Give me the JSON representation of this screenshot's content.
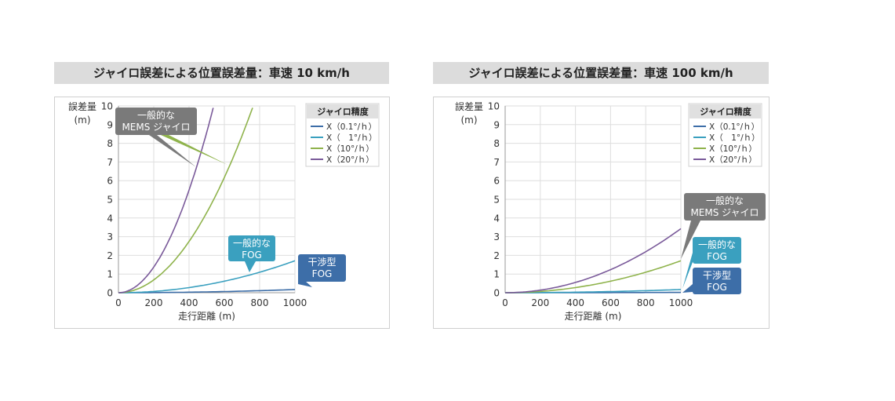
{
  "chart_data": [
    {
      "type": "line",
      "title": "ジャイロ誤差による位置誤差量：車速 10 km/h",
      "xlabel": "走行距離 (m)",
      "ylabel": [
        "誤差量",
        "(m)"
      ],
      "xlim": [
        0,
        1000
      ],
      "ylim": [
        0,
        10
      ],
      "xticks": [
        "0",
        "200",
        "400",
        "600",
        "800",
        "1000"
      ],
      "yticks": [
        "0",
        "1",
        "2",
        "3",
        "4",
        "5",
        "6",
        "7",
        "8",
        "9",
        "10"
      ],
      "grid": true,
      "legend": {
        "title": "ジャイロ精度",
        "position": "top-right",
        "entries": [
          "X（0.1°/ｈ）",
          "X（　1°/ｈ）",
          "X（10°/ｈ）",
          "X（20°/ｈ）"
        ]
      },
      "series": [
        {
          "name": "X（0.1°/ｈ）",
          "color": "#3d6ea8",
          "x": [
            0,
            200,
            400,
            600,
            800,
            1000
          ],
          "y": [
            0,
            0.007,
            0.027,
            0.062,
            0.11,
            0.171
          ]
        },
        {
          "name": "X（　1°/ｈ）",
          "color": "#3aa0bf",
          "x": [
            0,
            200,
            400,
            600,
            800,
            1000
          ],
          "y": [
            0,
            0.068,
            0.274,
            0.617,
            1.097,
            1.714
          ]
        },
        {
          "name": "X（10°/ｈ）",
          "color": "#8fb34c",
          "x": [
            0,
            200,
            400,
            600,
            760
          ],
          "y": [
            0,
            0.686,
            2.742,
            6.171,
            9.9
          ]
        },
        {
          "name": "X（20°/ｈ）",
          "color": "#7a5a9a",
          "x": [
            0,
            100,
            200,
            300,
            400,
            500,
            537
          ],
          "y": [
            0,
            0.343,
            1.371,
            3.086,
            5.485,
            8.571,
            9.9
          ]
        }
      ],
      "annotations": [
        {
          "label": [
            "一般的な",
            "MEMS ジャイロ"
          ],
          "color": "#7a7a7a"
        },
        {
          "label": [
            "一般的な",
            "FOG"
          ],
          "color": "#3aa0bf"
        },
        {
          "label": [
            "干渉型",
            "FOG"
          ],
          "color": "#3d6ea8"
        }
      ]
    },
    {
      "type": "line",
      "title": "ジャイロ誤差による位置誤差量：車速 100 km/h",
      "xlabel": "走行距離 (m)",
      "ylabel": [
        "誤差量",
        "(m)"
      ],
      "xlim": [
        0,
        1000
      ],
      "ylim": [
        0,
        10
      ],
      "xticks": [
        "0",
        "200",
        "400",
        "600",
        "800",
        "1000"
      ],
      "yticks": [
        "0",
        "1",
        "2",
        "3",
        "4",
        "5",
        "6",
        "7",
        "8",
        "9",
        "10"
      ],
      "grid": true,
      "legend": {
        "title": "ジャイロ精度",
        "position": "top-right",
        "entries": [
          "X（0.1°/ｈ）",
          "X（　1°/ｈ）",
          "X（10°/ｈ）",
          "X（20°/ｈ）"
        ]
      },
      "series": [
        {
          "name": "X（0.1°/ｈ）",
          "color": "#3d6ea8",
          "x": [
            0,
            200,
            400,
            600,
            800,
            1000
          ],
          "y": [
            0,
            0.001,
            0.003,
            0.006,
            0.011,
            0.017
          ]
        },
        {
          "name": "X（　1°/ｈ）",
          "color": "#3aa0bf",
          "x": [
            0,
            200,
            400,
            600,
            800,
            1000
          ],
          "y": [
            0,
            0.007,
            0.027,
            0.062,
            0.11,
            0.171
          ]
        },
        {
          "name": "X（10°/ｈ）",
          "color": "#8fb34c",
          "x": [
            0,
            200,
            400,
            600,
            800,
            1000
          ],
          "y": [
            0,
            0.069,
            0.274,
            0.617,
            1.097,
            1.714
          ]
        },
        {
          "name": "X（20°/ｈ）",
          "color": "#7a5a9a",
          "x": [
            0,
            200,
            400,
            600,
            800,
            1000
          ],
          "y": [
            0,
            0.137,
            0.549,
            1.234,
            2.194,
            3.429
          ]
        }
      ],
      "annotations": [
        {
          "label": [
            "一般的な",
            "MEMS ジャイロ"
          ],
          "color": "#7a7a7a"
        },
        {
          "label": [
            "一般的な",
            "FOG"
          ],
          "color": "#3aa0bf"
        },
        {
          "label": [
            "干渉型",
            "FOG"
          ],
          "color": "#3d6ea8"
        }
      ]
    }
  ]
}
